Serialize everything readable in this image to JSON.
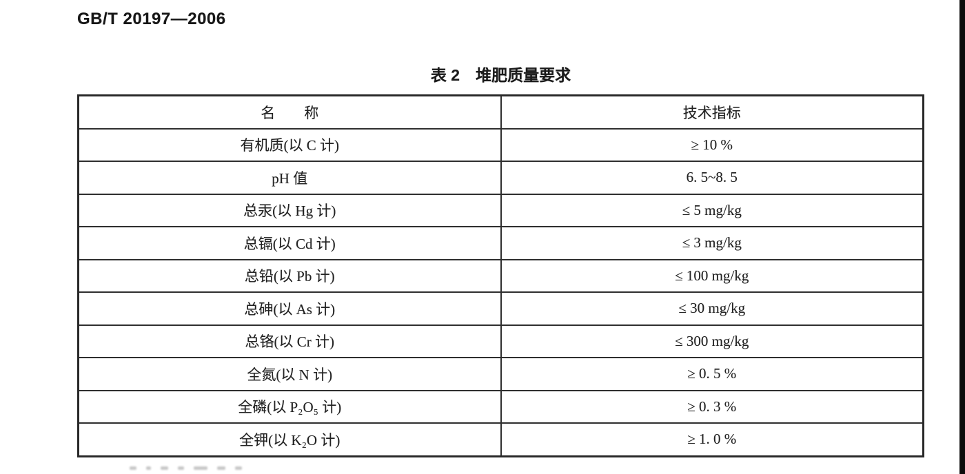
{
  "page": {
    "doc_number": "GB/T 20197—2006",
    "table_title": "表 2　堆肥质量要求"
  },
  "table": {
    "headers": {
      "name": "名　　称",
      "value": "技术指标"
    },
    "rows": [
      {
        "name": "有机质(以 C 计)",
        "value": "≥ 10 %"
      },
      {
        "name": "pH 值",
        "value": "6. 5~8. 5"
      },
      {
        "name": "总汞(以 Hg 计)",
        "value": "≤ 5 mg/kg"
      },
      {
        "name": "总镉(以 Cd 计)",
        "value": "≤ 3 mg/kg"
      },
      {
        "name": "总铅(以 Pb 计)",
        "value": "≤ 100 mg/kg"
      },
      {
        "name": "总砷(以 As 计)",
        "value": "≤ 30 mg/kg"
      },
      {
        "name": "总铬(以 Cr 计)",
        "value": "≤ 300 mg/kg"
      },
      {
        "name": "全氮(以 N 计)",
        "value": "≥ 0. 5 %"
      },
      {
        "name": "全磷(以 P₂O₅ 计)",
        "value": "≥ 0. 3 %"
      },
      {
        "name": "全钾(以 K₂O 计)",
        "value": "≥ 1. 0 %"
      }
    ]
  }
}
